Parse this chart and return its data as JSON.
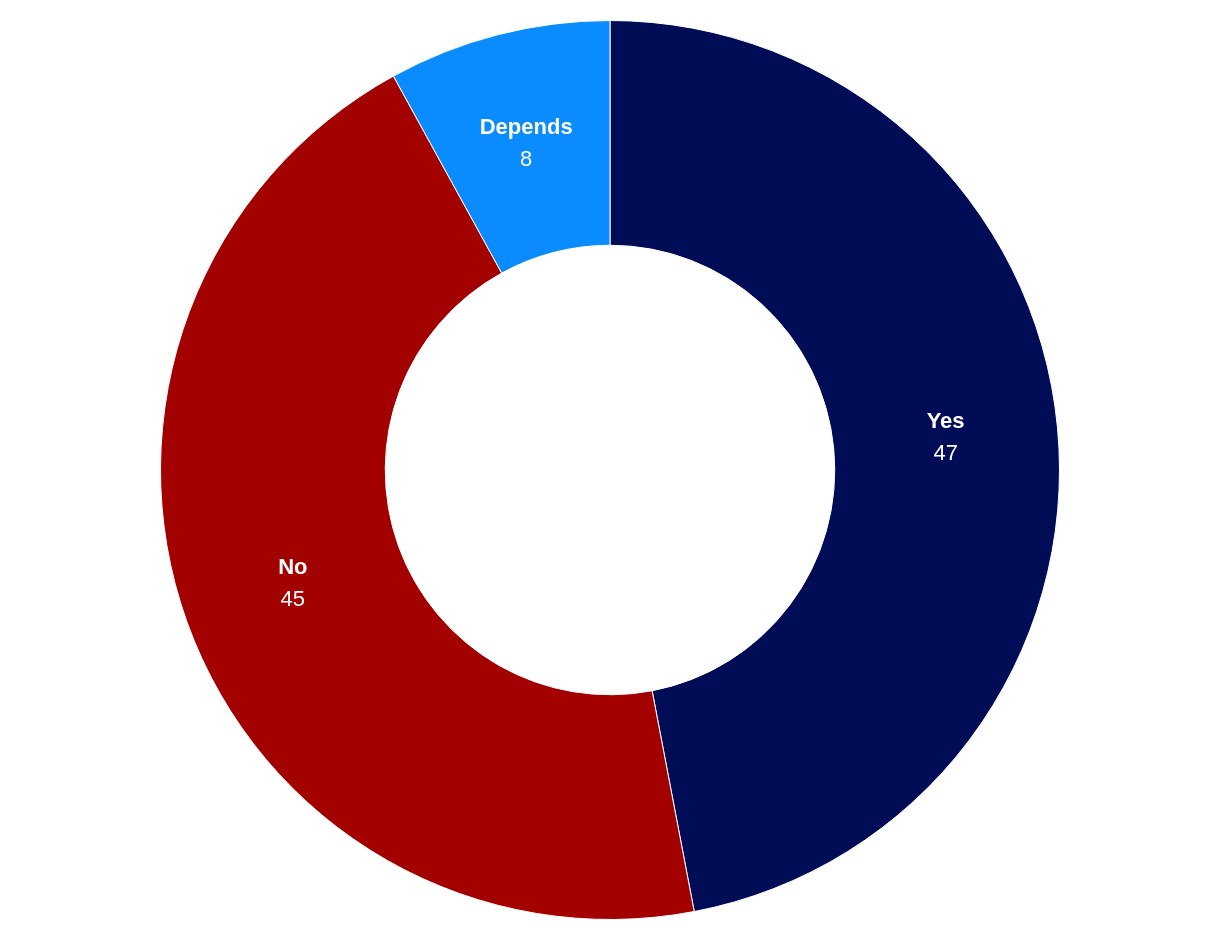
{
  "chart_data": {
    "type": "donut",
    "categories": [
      "Yes",
      "No",
      "Depends"
    ],
    "values": [
      47,
      45,
      8
    ],
    "colors": [
      "#000c56",
      "#a30000",
      "#0a8cff"
    ],
    "data_labels": true
  }
}
